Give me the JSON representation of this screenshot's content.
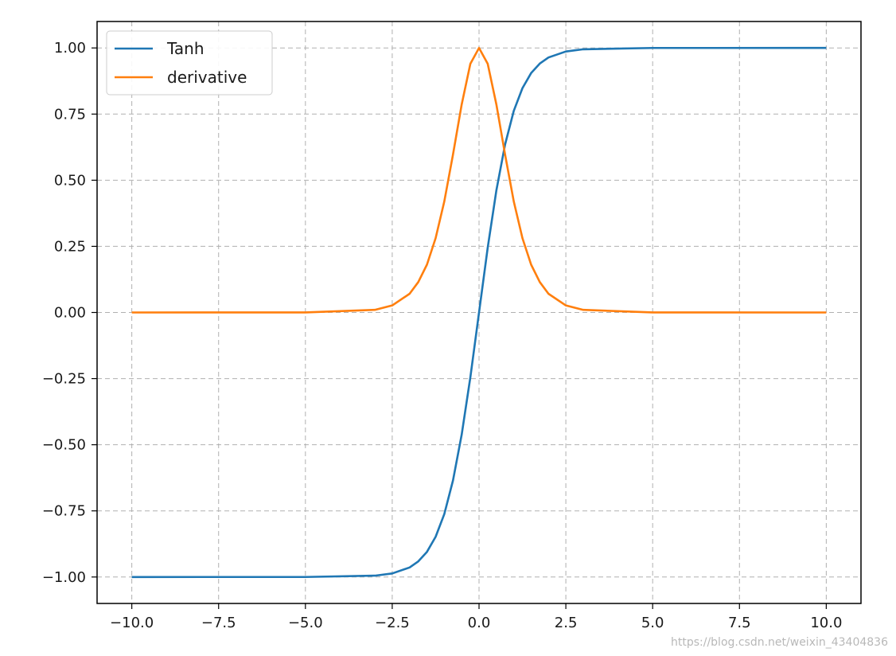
{
  "chart_data": {
    "type": "line",
    "title": "",
    "xlabel": "",
    "ylabel": "",
    "xlim": [
      -11.0,
      11.0
    ],
    "ylim": [
      -1.1,
      1.1
    ],
    "grid": true,
    "grid_style": "dashed",
    "legend_position": "top-left",
    "x_ticks": [
      -10.0,
      -7.5,
      -5.0,
      -2.5,
      0.0,
      2.5,
      5.0,
      7.5,
      10.0
    ],
    "x_tick_labels": [
      "−10.0",
      "−7.5",
      "−5.0",
      "−2.5",
      "0.0",
      "2.5",
      "5.0",
      "7.5",
      "10.0"
    ],
    "y_ticks": [
      1.0,
      0.75,
      0.5,
      0.25,
      0.0,
      -0.25,
      -0.5,
      -0.75,
      -1.0
    ],
    "y_tick_labels": [
      "1.00",
      "0.75",
      "0.50",
      "0.25",
      "0.00",
      "−0.25",
      "−0.50",
      "−0.75",
      "−1.00"
    ],
    "x": [
      -10.0,
      -5.0,
      -3.0,
      -2.5,
      -2.0,
      -1.75,
      -1.5,
      -1.25,
      -1.0,
      -0.75,
      -0.5,
      -0.25,
      0.0,
      0.25,
      0.5,
      0.75,
      1.0,
      1.25,
      1.5,
      1.75,
      2.0,
      2.5,
      3.0,
      5.0,
      10.0
    ],
    "series": [
      {
        "name": "Tanh",
        "color": "#1f77b4",
        "values": [
          -1.0,
          -0.9999,
          -0.995,
          -0.9866,
          -0.964,
          -0.941,
          -0.905,
          -0.848,
          -0.762,
          -0.635,
          -0.462,
          -0.245,
          0.0,
          0.245,
          0.462,
          0.635,
          0.762,
          0.848,
          0.905,
          0.941,
          0.964,
          0.9866,
          0.995,
          0.9999,
          1.0
        ]
      },
      {
        "name": "derivative",
        "color": "#ff7f0e",
        "values": [
          0.0,
          0.0002,
          0.0099,
          0.0266,
          0.0707,
          0.115,
          0.181,
          0.281,
          0.42,
          0.597,
          0.786,
          0.94,
          1.0,
          0.94,
          0.786,
          0.597,
          0.42,
          0.281,
          0.181,
          0.115,
          0.0707,
          0.0266,
          0.0099,
          0.0002,
          0.0
        ]
      }
    ]
  },
  "watermark": "https://blog.csdn.net/weixin_43404836"
}
